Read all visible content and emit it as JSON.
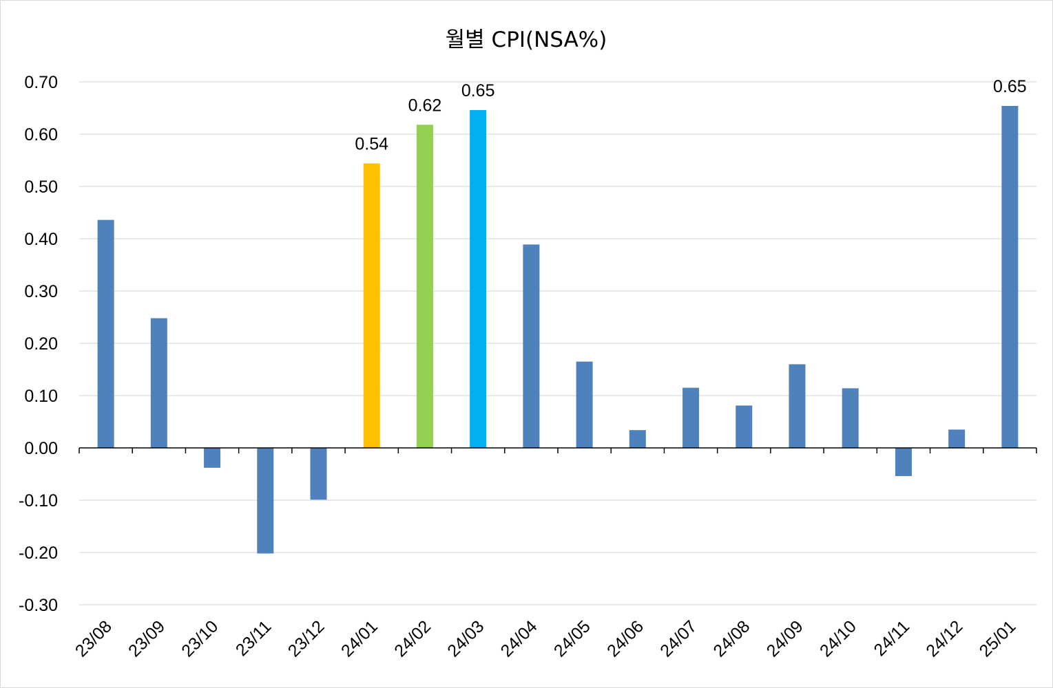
{
  "chart_data": {
    "type": "bar",
    "title": "월별 CPI(NSA%)",
    "xlabel": "",
    "ylabel": "",
    "ylim": [
      -0.3,
      0.7
    ],
    "yticks": [
      "0.70",
      "0.60",
      "0.50",
      "0.40",
      "0.30",
      "0.20",
      "0.10",
      "0.00",
      "-0.10",
      "-0.20",
      "-0.30"
    ],
    "grid": true,
    "legend": "none",
    "categories": [
      "23/08",
      "23/09",
      "23/10",
      "23/11",
      "23/12",
      "24/01",
      "24/02",
      "24/03",
      "24/04",
      "24/05",
      "24/06",
      "24/07",
      "24/08",
      "24/09",
      "24/10",
      "24/11",
      "24/12",
      "25/01"
    ],
    "values": [
      0.436,
      0.248,
      -0.038,
      -0.202,
      -0.099,
      0.544,
      0.618,
      0.646,
      0.389,
      0.165,
      0.034,
      0.115,
      0.081,
      0.16,
      0.114,
      -0.054,
      0.035,
      0.654
    ],
    "bar_colors": [
      "#4f81bd",
      "#4f81bd",
      "#4f81bd",
      "#4f81bd",
      "#4f81bd",
      "#ffc000",
      "#92d050",
      "#00b0f0",
      "#4f81bd",
      "#4f81bd",
      "#4f81bd",
      "#4f81bd",
      "#4f81bd",
      "#4f81bd",
      "#4f81bd",
      "#4f81bd",
      "#4f81bd",
      "#4f81bd"
    ],
    "data_labels": [
      "",
      "",
      "",
      "",
      "",
      "0.54",
      "0.62",
      "0.65",
      "",
      "",
      "",
      "",
      "",
      "",
      "",
      "",
      "",
      "0.65"
    ]
  }
}
